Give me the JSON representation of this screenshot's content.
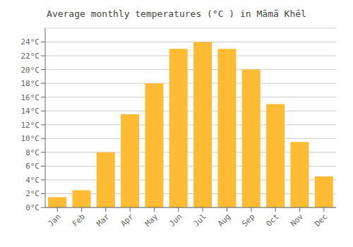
{
  "chart_data": {
    "type": "bar",
    "title": "Average monthly temperatures (°C ) in Māmā Khēl",
    "categories": [
      "Jan",
      "Feb",
      "Mar",
      "Apr",
      "May",
      "Jun",
      "Jul",
      "Aug",
      "Sep",
      "Oct",
      "Nov",
      "Dec"
    ],
    "values": [
      1.5,
      2.5,
      8.0,
      13.5,
      18.0,
      23.0,
      24.0,
      23.0,
      20.0,
      15.0,
      9.5,
      4.5
    ],
    "color": "#FFBB33",
    "ylim": [
      0,
      26
    ],
    "yticks": [
      {
        "value": 0,
        "label": "0°C"
      },
      {
        "value": 2,
        "label": "2°C"
      },
      {
        "value": 4,
        "label": "4°C"
      },
      {
        "value": 6,
        "label": "6°C"
      },
      {
        "value": 8,
        "label": "8°C"
      },
      {
        "value": 10,
        "label": "10°C"
      },
      {
        "value": 12,
        "label": "12°C"
      },
      {
        "value": 14,
        "label": "14°C"
      },
      {
        "value": 16,
        "label": "16°C"
      },
      {
        "value": 18,
        "label": "18°C"
      },
      {
        "value": 20,
        "label": "20°C"
      },
      {
        "value": 22,
        "label": "22°C"
      },
      {
        "value": 24,
        "label": "24°C"
      }
    ],
    "grid": true
  }
}
